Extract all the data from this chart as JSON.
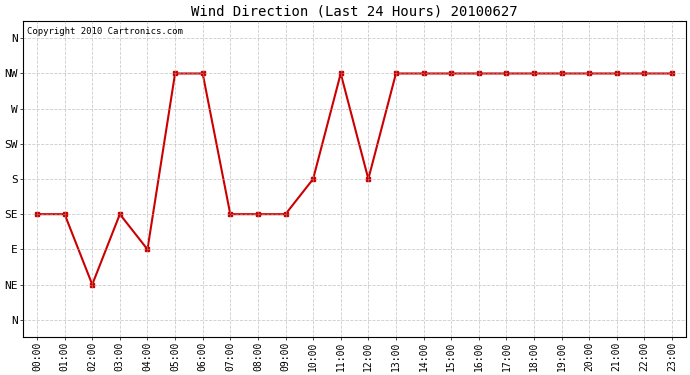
{
  "title": "Wind Direction (Last 24 Hours) 20100627",
  "copyright": "Copyright 2010 Cartronics.com",
  "background_color": "#ffffff",
  "plot_background": "#ffffff",
  "line_color": "#cc0000",
  "marker": "s",
  "marker_size": 3,
  "marker_linewidth": 1,
  "line_width": 1.5,
  "x_labels": [
    "00:00",
    "01:00",
    "02:00",
    "03:00",
    "04:00",
    "05:00",
    "06:00",
    "07:00",
    "08:00",
    "09:00",
    "10:00",
    "11:00",
    "12:00",
    "13:00",
    "14:00",
    "15:00",
    "16:00",
    "17:00",
    "18:00",
    "19:00",
    "20:00",
    "21:00",
    "22:00",
    "23:00"
  ],
  "y_tick_positions": [
    0,
    1,
    2,
    3,
    4,
    5,
    6,
    7,
    8
  ],
  "y_labels": [
    "N",
    "NE",
    "E",
    "SE",
    "S",
    "SW",
    "W",
    "NW",
    "N"
  ],
  "data_points": [
    3,
    3,
    1,
    3,
    2,
    7,
    7,
    3,
    3,
    3,
    4,
    7,
    4,
    7,
    7,
    7,
    7,
    7,
    7,
    7,
    7,
    7,
    7,
    7
  ],
  "xlim": [
    -0.5,
    23.5
  ],
  "ylim": [
    -0.5,
    8.5
  ],
  "grid_color": "#aaaaaa",
  "grid_style": "--",
  "grid_alpha": 0.6,
  "grid_linewidth": 0.6,
  "title_fontsize": 10,
  "tick_fontsize": 7,
  "y_tick_fontsize": 8
}
